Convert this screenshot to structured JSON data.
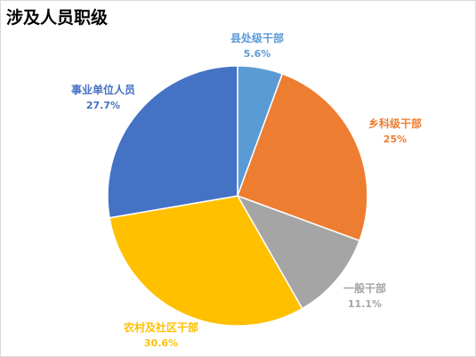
{
  "chart_data": {
    "type": "pie",
    "title": "涉及人员职级",
    "categories": [
      "县处级干部",
      "乡科级干部",
      "一般干部",
      "农村及社区干部",
      "事业单位人员"
    ],
    "values": [
      5.6,
      25,
      11.1,
      30.6,
      27.7
    ],
    "value_labels": [
      "5.6%",
      "25%",
      "11.1%",
      "30.6%",
      "27.7%"
    ],
    "colors": [
      "#5b9bd5",
      "#ed7d31",
      "#a5a5a5",
      "#ffc000",
      "#4472c4"
    ],
    "start_angle": "12 o'clock",
    "direction": "clockwise",
    "legend": "none"
  }
}
